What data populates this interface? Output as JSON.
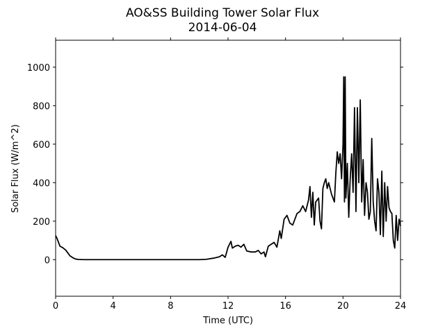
{
  "chart_data": {
    "type": "line",
    "title": "AO&SS Building Tower Solar Flux",
    "subtitle": "2014-06-04",
    "x_label": "Time (UTC)",
    "y_label": "Solar Flux (W/m^2)",
    "xlim": [
      0,
      24
    ],
    "xticks": [
      0,
      4,
      8,
      12,
      16,
      20,
      24
    ],
    "ylim": [
      -190,
      1140
    ],
    "yticks": [
      0,
      200,
      400,
      600,
      800,
      1000
    ],
    "series": [
      {
        "name": "Solar Flux",
        "color": "#000000",
        "x": [
          0,
          0.1,
          0.3,
          0.5,
          0.7,
          0.9,
          1.0,
          1.2,
          1.4,
          1.6,
          2,
          4,
          6,
          8,
          10,
          10.5,
          11,
          11.4,
          11.6,
          11.8,
          12,
          12.2,
          12.3,
          12.5,
          12.7,
          12.9,
          13.1,
          13.3,
          13.6,
          13.9,
          14.1,
          14.3,
          14.5,
          14.6,
          14.8,
          15.0,
          15.2,
          15.4,
          15.6,
          15.7,
          15.9,
          16.1,
          16.3,
          16.5,
          16.8,
          17.0,
          17.2,
          17.4,
          17.6,
          17.7,
          17.8,
          17.9,
          18.0,
          18.1,
          18.3,
          18.4,
          18.5,
          18.6,
          18.7,
          18.8,
          18.9,
          19.0,
          19.2,
          19.4,
          19.5,
          19.6,
          19.7,
          19.8,
          19.9,
          20.0,
          20.05,
          20.1,
          20.15,
          20.2,
          20.3,
          20.4,
          20.5,
          20.6,
          20.7,
          20.8,
          20.9,
          21.0,
          21.1,
          21.2,
          21.3,
          21.4,
          21.5,
          21.6,
          21.7,
          21.8,
          21.9,
          22.0,
          22.1,
          22.2,
          22.3,
          22.4,
          22.5,
          22.6,
          22.7,
          22.8,
          22.9,
          23.0,
          23.1,
          23.2,
          23.3,
          23.4,
          23.5,
          23.6,
          23.7,
          23.8,
          23.9,
          24.0
        ],
        "values": [
          125,
          110,
          70,
          62,
          50,
          30,
          20,
          10,
          3,
          1,
          0,
          0,
          0,
          0,
          0,
          2,
          8,
          15,
          25,
          12,
          65,
          95,
          60,
          70,
          75,
          65,
          80,
          45,
          40,
          40,
          48,
          30,
          40,
          15,
          70,
          80,
          90,
          65,
          150,
          110,
          210,
          230,
          190,
          180,
          240,
          250,
          280,
          250,
          310,
          380,
          220,
          350,
          180,
          300,
          320,
          200,
          160,
          370,
          400,
          420,
          370,
          400,
          340,
          300,
          450,
          560,
          500,
          550,
          420,
          600,
          950,
          300,
          950,
          320,
          500,
          220,
          420,
          550,
          350,
          790,
          250,
          790,
          400,
          830,
          300,
          520,
          230,
          400,
          350,
          210,
          250,
          630,
          300,
          200,
          150,
          420,
          350,
          130,
          460,
          120,
          400,
          200,
          380,
          270,
          250,
          240,
          100,
          60,
          230,
          100,
          210,
          175
        ]
      }
    ]
  }
}
